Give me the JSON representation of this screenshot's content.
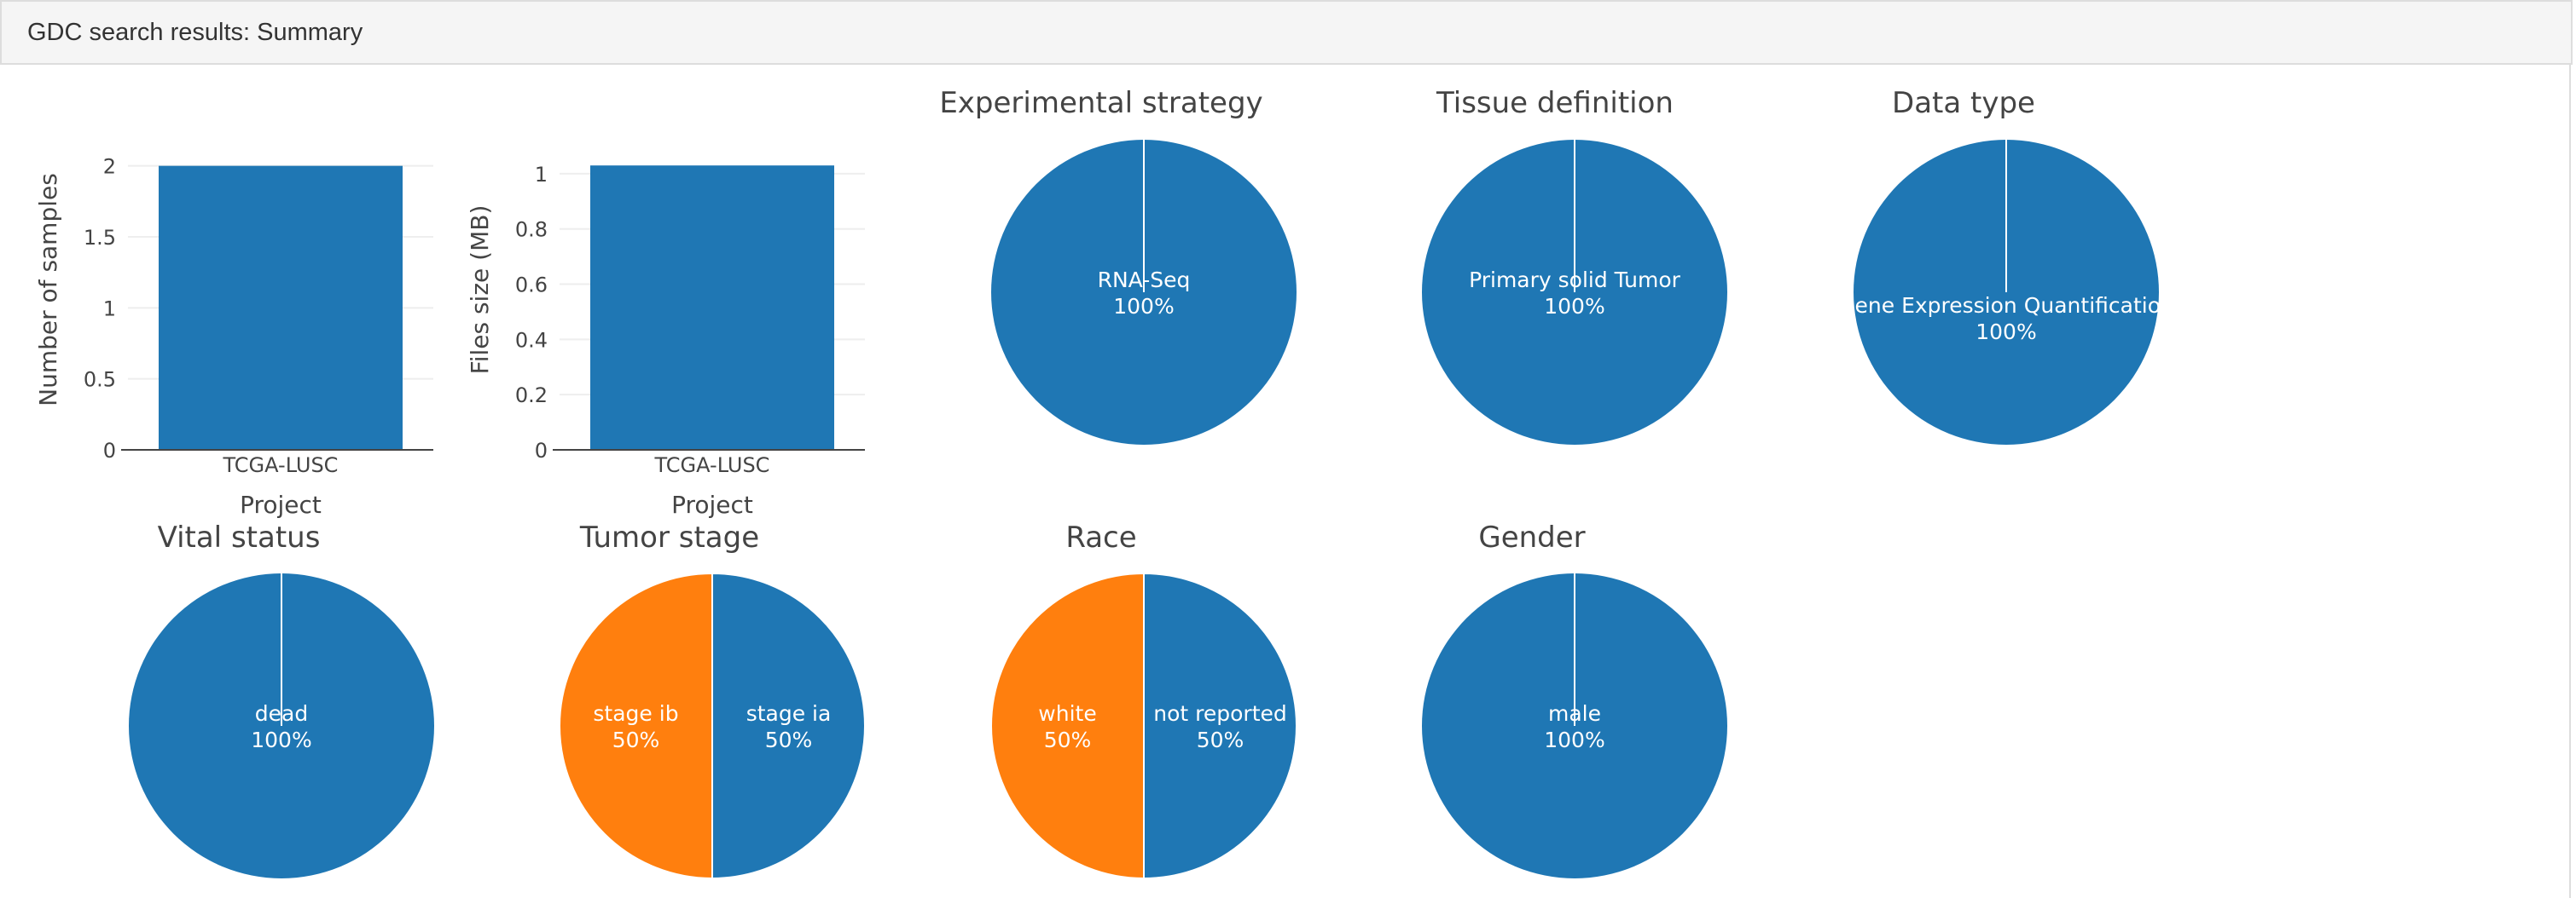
{
  "header": {
    "title": "GDC search results: Summary"
  },
  "colors": {
    "blue": "#1f77b4",
    "orange": "#ff7f0e",
    "axis": "#444444",
    "grid": "#eeeeee",
    "title": "#444444"
  },
  "chart_data": [
    {
      "type": "bar",
      "categories": [
        "TCGA-LUSC"
      ],
      "values": [
        2
      ],
      "xlabel": "Project",
      "ylabel": "Number of samples",
      "yticks": [
        "0",
        "0.5",
        "1",
        "1.5",
        "2"
      ],
      "ylim": [
        0,
        2.1
      ]
    },
    {
      "type": "bar",
      "categories": [
        "TCGA-LUSC"
      ],
      "values": [
        1.03
      ],
      "xlabel": "Project",
      "ylabel": "Files size (MB)",
      "yticks": [
        "0",
        "0.2",
        "0.4",
        "0.6",
        "0.8",
        "1"
      ],
      "ylim": [
        0,
        1.08
      ]
    },
    {
      "type": "pie",
      "title": "Experimental strategy",
      "labels": [
        "RNA-Seq"
      ],
      "values": [
        100
      ],
      "percent_labels": [
        "100%"
      ]
    },
    {
      "type": "pie",
      "title": "Tissue definition",
      "labels": [
        "Primary solid Tumor"
      ],
      "values": [
        100
      ],
      "percent_labels": [
        "100%"
      ]
    },
    {
      "type": "pie",
      "title": "Data type",
      "labels": [
        "Gene Expression Quantification"
      ],
      "values": [
        100
      ],
      "percent_labels": [
        "100%"
      ]
    },
    {
      "type": "pie",
      "title": "Vital status",
      "labels": [
        "dead"
      ],
      "values": [
        100
      ],
      "percent_labels": [
        "100%"
      ]
    },
    {
      "type": "pie",
      "title": "Tumor stage",
      "labels": [
        "stage ia",
        "stage ib"
      ],
      "values": [
        50,
        50
      ],
      "percent_labels": [
        "50%",
        "50%"
      ]
    },
    {
      "type": "pie",
      "title": "Race",
      "labels": [
        "not reported",
        "white"
      ],
      "values": [
        50,
        50
      ],
      "percent_labels": [
        "50%",
        "50%"
      ]
    },
    {
      "type": "pie",
      "title": "Gender",
      "labels": [
        "male"
      ],
      "values": [
        100
      ],
      "percent_labels": [
        "100%"
      ]
    }
  ]
}
